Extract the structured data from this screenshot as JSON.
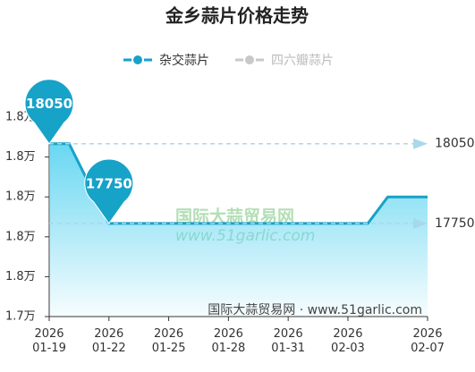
{
  "chart_data": {
    "type": "line",
    "title": "金乡蒜片价格走势",
    "categories": [
      "2026\n01-19",
      null,
      null,
      "2026\n01-22",
      null,
      null,
      "2026\n01-25",
      null,
      null,
      "2026\n01-28",
      null,
      null,
      "2026\n01-31",
      null,
      null,
      "2026\n02-03",
      null,
      null,
      null,
      "2026\n02-07"
    ],
    "series": [
      {
        "name": "杂交蒜片",
        "color": "#17a2c8",
        "values": [
          18050,
          18050,
          17900,
          17750,
          17750,
          17750,
          17750,
          17750,
          17750,
          17750,
          17750,
          17750,
          17750,
          17750,
          17750,
          17750,
          17750,
          17850,
          17850,
          17850
        ],
        "max": 18050,
        "min": 17750,
        "visible": true
      },
      {
        "name": "四六瓣蒜片",
        "color": "#c8c8c8",
        "values": [
          null,
          null,
          null,
          null,
          null,
          null,
          null,
          null,
          null,
          null,
          null,
          null,
          null,
          null,
          null,
          null,
          null,
          null,
          null,
          null
        ],
        "visible": false
      }
    ],
    "ylim": [
      17400,
      18150
    ],
    "yticks": [
      {
        "value": 17400,
        "label": "1.7万"
      },
      {
        "value": 17550,
        "label": "1.8万"
      },
      {
        "value": 17700,
        "label": "1.8万"
      },
      {
        "value": 17850,
        "label": "1.8万"
      },
      {
        "value": 18000,
        "label": "1.8万"
      },
      {
        "value": 18150,
        "label": "1.8万"
      }
    ],
    "watermark": [
      "国际大蒜贸易网",
      "www.51garlic.com"
    ],
    "source": "国际大蒜贸易网 · www.51garlic.com"
  }
}
